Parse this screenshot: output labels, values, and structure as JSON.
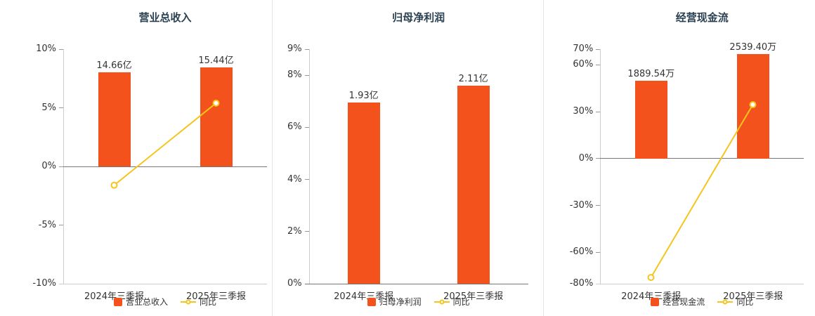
{
  "page": {
    "background": "#ffffff"
  },
  "colors": {
    "bar": "#f4521c",
    "line": "#f6c51d",
    "marker_fill": "#ffffff",
    "title_text": "#2b4152",
    "axis_text": "#333333",
    "zero_line": "#777777",
    "axis_line": "#cccccc",
    "tick_mark": "#999999",
    "separator": "#e5e5e5"
  },
  "chart_data": [
    {
      "type": "bar+line",
      "title": "营业总收入",
      "categories": [
        "2024年三季报",
        "2025年三季报"
      ],
      "bar_series": {
        "name": "营业总收入",
        "values": [
          14.66,
          15.44
        ],
        "unit": "亿",
        "value_labels": [
          "14.66亿",
          "15.44亿"
        ],
        "heights_pct_axis": [
          8.0,
          8.45
        ]
      },
      "line_series": {
        "name": "同比",
        "visible": true,
        "values_pct": [
          -1.6,
          5.4
        ]
      },
      "ylim": [
        -10,
        10
      ],
      "yticks": [
        10,
        5,
        0,
        -5,
        -10
      ],
      "ytick_labels": [
        "10%",
        "5%",
        "0%",
        "-5%",
        "-10%"
      ],
      "xlabel": "",
      "ylabel": "",
      "grid": false,
      "legend": [
        "营业总收入",
        "同比"
      ],
      "legend_position": "bottom"
    },
    {
      "type": "bar+line",
      "title": "归母净利润",
      "categories": [
        "2024年三季报",
        "2025年三季报"
      ],
      "bar_series": {
        "name": "归母净利润",
        "values": [
          1.93,
          2.11
        ],
        "unit": "亿",
        "value_labels": [
          "1.93亿",
          "2.11亿"
        ],
        "heights_pct_axis": [
          6.95,
          7.6
        ]
      },
      "line_series": {
        "name": "同比",
        "visible": false,
        "values_pct": [
          null,
          null
        ]
      },
      "ylim": [
        0,
        9
      ],
      "yticks": [
        9,
        8,
        6,
        4,
        2,
        0
      ],
      "ytick_labels": [
        "9%",
        "8%",
        "6%",
        "4%",
        "2%",
        "0%"
      ],
      "xlabel": "",
      "ylabel": "",
      "grid": false,
      "legend": [
        "归母净利润",
        "同比"
      ],
      "legend_position": "bottom"
    },
    {
      "type": "bar+line",
      "title": "经营现金流",
      "categories": [
        "2024年三季报",
        "2025年三季报"
      ],
      "bar_series": {
        "name": "经营现金流",
        "values": [
          1889.54,
          2539.4
        ],
        "unit": "万",
        "value_labels": [
          "1889.54万",
          "2539.40万"
        ],
        "heights_pct_axis": [
          50.0,
          67.0
        ]
      },
      "line_series": {
        "name": "同比",
        "visible": true,
        "values_pct": [
          -76.0,
          34.5
        ]
      },
      "ylim": [
        -80,
        70
      ],
      "yticks": [
        70,
        60,
        30,
        0,
        -30,
        -60,
        -80
      ],
      "ytick_labels": [
        "70%",
        "60%",
        "30%",
        "0%",
        "-30%",
        "-60%",
        "-80%"
      ],
      "xlabel": "",
      "ylabel": "",
      "grid": false,
      "legend": [
        "经营现金流",
        "同比"
      ],
      "legend_position": "bottom"
    }
  ]
}
